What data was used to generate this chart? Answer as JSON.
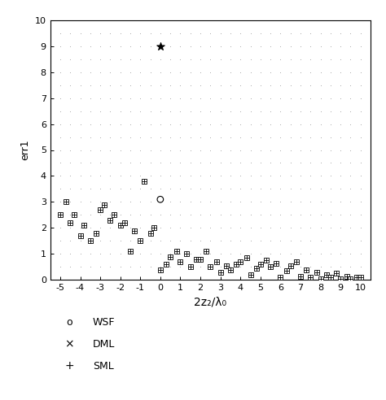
{
  "title": "",
  "xlabel": "2z₂/λ₀",
  "ylabel": "err1",
  "xlim": [
    -5.5,
    10.5
  ],
  "ylim": [
    0,
    10
  ],
  "xticks": [
    -5,
    -4,
    -3,
    -2,
    -1,
    0,
    1,
    2,
    3,
    4,
    5,
    6,
    7,
    8,
    9,
    10
  ],
  "yticks": [
    0,
    1,
    2,
    3,
    4,
    5,
    6,
    7,
    8,
    9,
    10
  ],
  "wsf_x": [
    0
  ],
  "wsf_y": [
    3.1
  ],
  "dml_x": [
    0
  ],
  "dml_y": [
    9.0
  ],
  "sml_data": {
    "x": [
      -5.0,
      -4.7,
      -4.5,
      -4.3,
      -4.0,
      -3.8,
      -3.5,
      -3.2,
      -3.0,
      -2.8,
      -2.5,
      -2.3,
      -2.0,
      -1.8,
      -1.5,
      -1.3,
      -1.0,
      -0.8,
      -0.5,
      -0.3,
      0.0,
      0.3,
      0.5,
      0.8,
      1.0,
      1.3,
      1.5,
      1.8,
      2.0,
      2.3,
      2.5,
      2.8,
      3.0,
      3.3,
      3.5,
      3.8,
      4.0,
      4.3,
      4.5,
      4.8,
      5.0,
      5.3,
      5.5,
      5.8,
      6.0,
      6.3,
      6.5,
      6.8,
      7.0,
      7.3,
      7.5,
      7.8,
      8.0,
      8.3,
      8.5,
      8.8,
      9.0,
      9.3,
      9.5,
      9.8,
      10.0
    ],
    "y": [
      2.5,
      3.0,
      2.2,
      2.5,
      1.7,
      2.1,
      1.5,
      1.8,
      2.7,
      2.9,
      2.3,
      2.5,
      2.1,
      2.2,
      1.1,
      1.9,
      1.5,
      3.8,
      1.8,
      2.0,
      0.4,
      0.6,
      0.9,
      1.1,
      0.7,
      1.0,
      0.5,
      0.8,
      0.8,
      1.1,
      0.5,
      0.7,
      0.3,
      0.55,
      0.4,
      0.6,
      0.7,
      0.85,
      0.2,
      0.45,
      0.6,
      0.75,
      0.5,
      0.65,
      0.1,
      0.35,
      0.55,
      0.7,
      0.15,
      0.4,
      0.1,
      0.3,
      0.05,
      0.2,
      0.1,
      0.25,
      0.05,
      0.15,
      0.05,
      0.1,
      0.1
    ]
  },
  "background_color": "#ffffff",
  "dot_color": "#999999",
  "marker_color": "#000000",
  "legend_items": [
    "WSF",
    "DML",
    "SML"
  ],
  "figsize": [
    4.74,
    4.92
  ],
  "dpi": 100
}
